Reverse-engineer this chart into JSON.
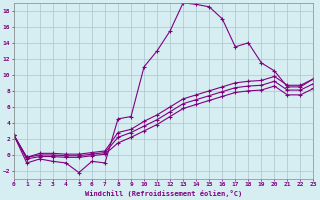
{
  "xlabel": "Windchill (Refroidissement éolien,°C)",
  "bg_color": "#d6eef2",
  "grid_color": "#b0cdd4",
  "line_color": "#800080",
  "xlim": [
    0,
    23
  ],
  "ylim": [
    -3,
    19
  ],
  "xticks": [
    0,
    1,
    2,
    3,
    4,
    5,
    6,
    7,
    8,
    9,
    10,
    11,
    12,
    13,
    14,
    15,
    16,
    17,
    18,
    19,
    20,
    21,
    22,
    23
  ],
  "yticks": [
    -2,
    0,
    2,
    4,
    6,
    8,
    10,
    12,
    14,
    16,
    18
  ],
  "series1_x": [
    0,
    1,
    2,
    3,
    4,
    5,
    6,
    7,
    8,
    9,
    10,
    11,
    12,
    13,
    14,
    15,
    16,
    17,
    18,
    19,
    20,
    21,
    22,
    23
  ],
  "series1_y": [
    2.5,
    -1.0,
    -0.5,
    -0.8,
    -1.0,
    -2.2,
    -0.8,
    -1.0,
    4.5,
    4.8,
    11.0,
    13.0,
    15.5,
    19.0,
    18.8,
    18.5,
    17.0,
    13.5,
    14.0,
    11.5,
    10.5,
    8.5,
    8.5,
    9.5
  ],
  "series2_x": [
    0,
    1,
    2,
    3,
    4,
    5,
    6,
    7,
    8,
    9,
    10,
    11,
    12,
    13,
    14,
    15,
    16,
    17,
    18,
    19,
    20,
    21,
    22,
    23
  ],
  "series2_y": [
    2.5,
    -0.3,
    0.2,
    0.2,
    0.1,
    0.1,
    0.3,
    0.5,
    2.8,
    3.2,
    4.2,
    5.0,
    6.0,
    7.0,
    7.5,
    8.0,
    8.5,
    9.0,
    9.2,
    9.3,
    9.8,
    8.7,
    8.7,
    9.5
  ],
  "series3_x": [
    0,
    1,
    2,
    3,
    4,
    5,
    6,
    7,
    8,
    9,
    10,
    11,
    12,
    13,
    14,
    15,
    16,
    17,
    18,
    19,
    20,
    21,
    22,
    23
  ],
  "series3_y": [
    2.5,
    -0.3,
    0.0,
    0.0,
    -0.1,
    -0.1,
    0.1,
    0.3,
    2.2,
    2.8,
    3.6,
    4.4,
    5.4,
    6.4,
    6.9,
    7.4,
    7.9,
    8.4,
    8.6,
    8.7,
    9.2,
    8.1,
    8.1,
    8.9
  ],
  "series4_x": [
    0,
    1,
    2,
    3,
    4,
    5,
    6,
    7,
    8,
    9,
    10,
    11,
    12,
    13,
    14,
    15,
    16,
    17,
    18,
    19,
    20,
    21,
    22,
    23
  ],
  "series4_y": [
    2.5,
    -0.5,
    -0.2,
    -0.2,
    -0.3,
    -0.3,
    -0.1,
    0.1,
    1.5,
    2.2,
    3.0,
    3.8,
    4.8,
    5.8,
    6.3,
    6.8,
    7.3,
    7.8,
    8.0,
    8.1,
    8.6,
    7.5,
    7.5,
    8.3
  ]
}
